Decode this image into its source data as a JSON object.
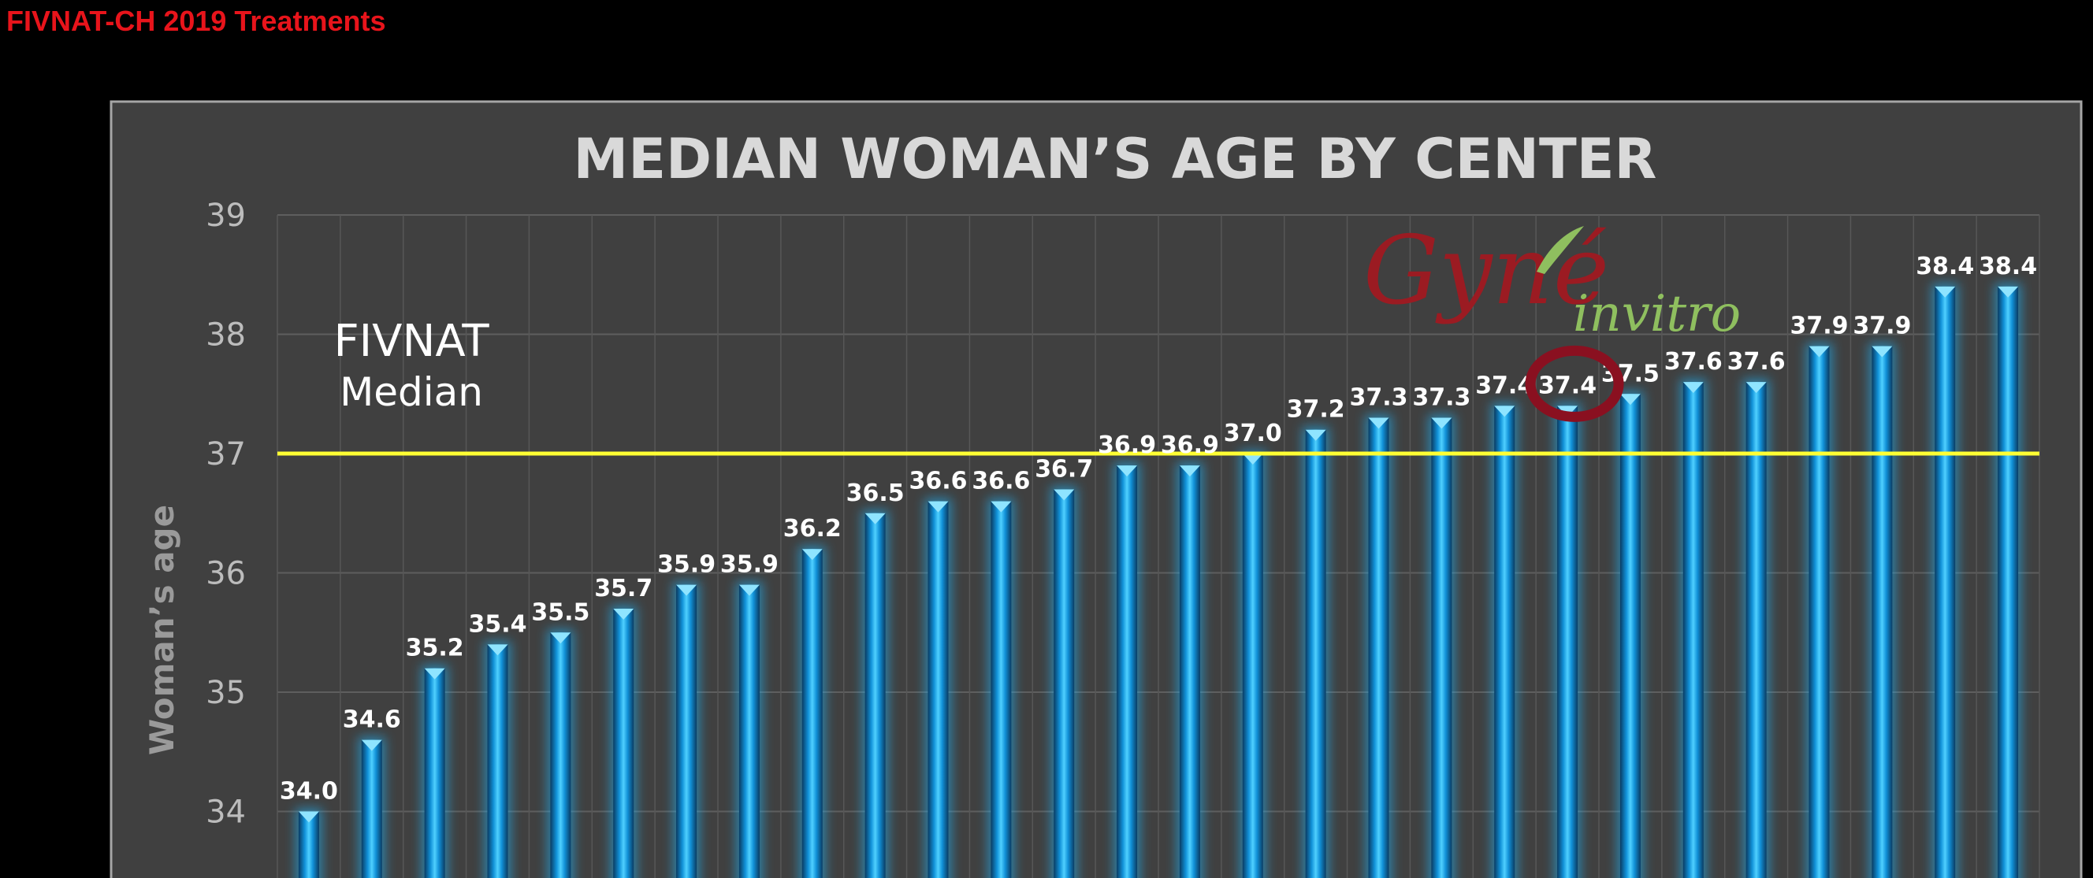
{
  "slide_title": "FIVNAT-CH 2019 Treatments",
  "logo": {
    "primary": "Gyné",
    "secondary": "invitro",
    "primary_color": "#9b1b22",
    "secondary_color": "#8fbf5f"
  },
  "annotation": {
    "line1": "FIVNAT",
    "line2": "Median"
  },
  "colors": {
    "panel_bg": "#404040",
    "bar": "#16a4e6",
    "reference_line": "#ffff33",
    "highlight_ring": "#8a1020",
    "slide_title": "#e8141b"
  },
  "chart_data": {
    "type": "bar",
    "title": "MEDIAN WOMAN’S AGE BY CENTER",
    "xlabel": "",
    "ylabel": "Woman’s age",
    "ylim": [
      34,
      39
    ],
    "yticks": [
      39,
      38,
      37,
      36,
      35,
      34
    ],
    "values": [
      34.0,
      34.6,
      35.2,
      35.4,
      35.5,
      35.7,
      35.9,
      35.9,
      36.2,
      36.5,
      36.6,
      36.6,
      36.7,
      36.9,
      36.9,
      37.0,
      37.2,
      37.3,
      37.3,
      37.4,
      37.4,
      37.5,
      37.6,
      37.6,
      37.9,
      37.9,
      38.4,
      38.4
    ],
    "labels": [
      "34.0",
      "34.6",
      "35.2",
      "35.4",
      "35.5",
      "35.7",
      "35.9",
      "35.9",
      "36.2",
      "36.5",
      "36.6",
      "36.6",
      "36.7",
      "36.9",
      "36.9",
      "37.0",
      "37.2",
      "37.3",
      "37.3",
      "37.4",
      "37.4",
      "37.5",
      "37.6",
      "37.6",
      "37.9",
      "37.9",
      "38.4",
      "38.4"
    ],
    "highlight_index": 20,
    "reference_line": {
      "value": 37.0
    },
    "grid": true,
    "legend": "none"
  }
}
